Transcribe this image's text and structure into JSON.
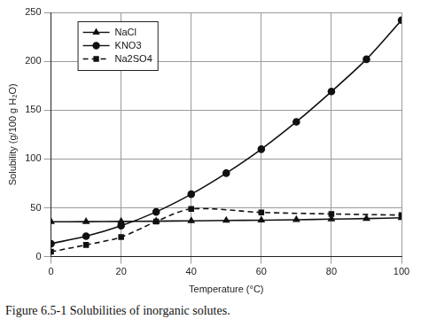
{
  "chart_data": {
    "type": "line",
    "title": "Figure 6.5-1  Solubilities of inorganic solutes.",
    "x_label": "Temperature (°C)",
    "y_label": "Solubility (g/100 g H₂O)",
    "xlim": [
      0,
      100
    ],
    "xticks": [
      0,
      20,
      40,
      60,
      80,
      100
    ],
    "ylim": [
      0,
      250
    ],
    "yticks": [
      0,
      50,
      100,
      150,
      200,
      250
    ],
    "grid": true,
    "legend": "upper left",
    "series": [
      {
        "name": "NaCl",
        "color": "#111111",
        "marker": "triangle",
        "line_style": "solid",
        "x": [
          0,
          10,
          20,
          30,
          40,
          50,
          60,
          70,
          80,
          90,
          100
        ],
        "values": [
          35.7,
          35.8,
          36,
          36.3,
          36.6,
          37,
          37.3,
          37.8,
          38.4,
          39,
          39.8
        ]
      },
      {
        "name": "KNO3",
        "color": "#111111",
        "marker": "circle",
        "line_style": "solid",
        "x": [
          0,
          10,
          20,
          30,
          40,
          50,
          60,
          70,
          80,
          90,
          100
        ],
        "values": [
          13.3,
          20.9,
          31.6,
          45.8,
          63.9,
          85.5,
          110,
          138,
          169,
          202,
          242
        ]
      },
      {
        "name": "Na2SO4",
        "color": "#111111",
        "marker": "square",
        "line_style": "dashed",
        "x": [
          0,
          10,
          20,
          30,
          40,
          60,
          80,
          100
        ],
        "values": [
          5,
          12,
          20,
          36,
          48.8,
          45.3,
          43.7,
          42.5
        ]
      }
    ]
  }
}
